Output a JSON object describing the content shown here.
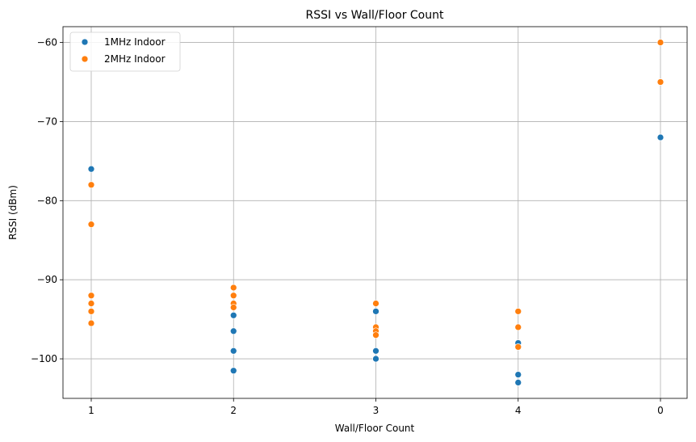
{
  "chart_data": {
    "type": "scatter",
    "title": "RSSI vs Wall/Floor Count",
    "xlabel": "Wall/Floor Count",
    "ylabel": "RSSI (dBm)",
    "categories": [
      "1",
      "2",
      "3",
      "4",
      "0"
    ],
    "ylim": [
      -105,
      -58
    ],
    "y_ticks": [
      -60,
      -70,
      -80,
      -90,
      -100
    ],
    "y_tick_labels": [
      "−60",
      "−70",
      "−80",
      "−90",
      "−100"
    ],
    "grid": true,
    "legend_position": "top-left",
    "series": [
      {
        "name": "1MHz Indoor",
        "color": "#1f77b4",
        "points": [
          {
            "x": "1",
            "y": -76
          },
          {
            "x": "2",
            "y": -94.5
          },
          {
            "x": "2",
            "y": -96.5
          },
          {
            "x": "2",
            "y": -99
          },
          {
            "x": "2",
            "y": -101.5
          },
          {
            "x": "3",
            "y": -94
          },
          {
            "x": "3",
            "y": -99
          },
          {
            "x": "3",
            "y": -100
          },
          {
            "x": "4",
            "y": -98
          },
          {
            "x": "4",
            "y": -102
          },
          {
            "x": "4",
            "y": -103
          },
          {
            "x": "0",
            "y": -72
          }
        ]
      },
      {
        "name": "2MHz Indoor",
        "color": "#ff7f0e",
        "points": [
          {
            "x": "1",
            "y": -78
          },
          {
            "x": "1",
            "y": -83
          },
          {
            "x": "1",
            "y": -92
          },
          {
            "x": "1",
            "y": -93
          },
          {
            "x": "1",
            "y": -94
          },
          {
            "x": "1",
            "y": -95.5
          },
          {
            "x": "2",
            "y": -91
          },
          {
            "x": "2",
            "y": -92
          },
          {
            "x": "2",
            "y": -93
          },
          {
            "x": "2",
            "y": -93.5
          },
          {
            "x": "3",
            "y": -93
          },
          {
            "x": "3",
            "y": -96
          },
          {
            "x": "3",
            "y": -96.5
          },
          {
            "x": "3",
            "y": -97
          },
          {
            "x": "4",
            "y": -94
          },
          {
            "x": "4",
            "y": -96
          },
          {
            "x": "4",
            "y": -98.5
          },
          {
            "x": "0",
            "y": -60
          },
          {
            "x": "0",
            "y": -65
          }
        ]
      }
    ]
  }
}
